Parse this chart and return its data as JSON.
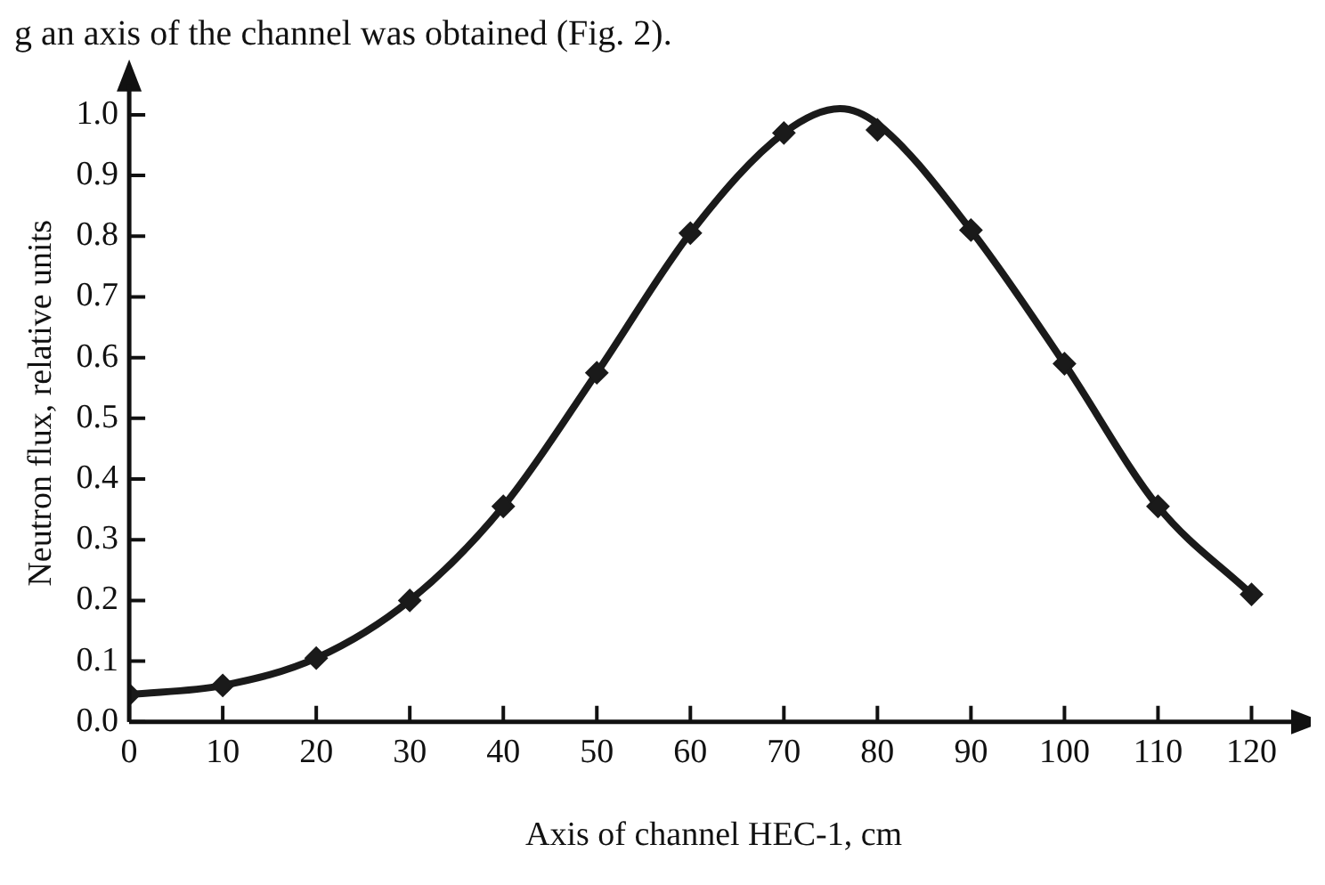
{
  "chart_data": {
    "type": "line",
    "xlabel": "Axis of channel HEC-1, cm",
    "ylabel": "Neutron flux, relative units",
    "annotations": [
      "g an axis of the channel was obtained (Fig. 2)."
    ],
    "series": [
      {
        "color": "#1a1a1a",
        "marker": "none",
        "x": [
          0,
          10,
          20,
          30,
          40,
          50,
          60,
          70,
          76,
          80,
          90,
          100,
          110,
          120
        ],
        "values": [
          0.045,
          0.06,
          0.105,
          0.2,
          0.355,
          0.575,
          0.805,
          0.97,
          1.01,
          0.985,
          0.81,
          0.59,
          0.355,
          0.21
        ]
      },
      {
        "type": "scatter",
        "color": "#1a1a1a",
        "marker": "diamond",
        "x": [
          0,
          10,
          20,
          30,
          40,
          50,
          60,
          70,
          80,
          90,
          100,
          110,
          120
        ],
        "values": [
          0.045,
          0.06,
          0.105,
          0.2,
          0.355,
          0.575,
          0.805,
          0.97,
          0.975,
          0.81,
          0.59,
          0.355,
          0.21
        ]
      }
    ],
    "xlim": [
      0,
      125
    ],
    "xticks": [
      0,
      10,
      20,
      30,
      40,
      50,
      60,
      70,
      80,
      90,
      100,
      110,
      120
    ],
    "ylim": [
      0,
      1.05
    ],
    "yticks": [
      {
        "value": 0,
        "label": "0.0"
      },
      0.1,
      0.2,
      0.3,
      0.4,
      0.5,
      0.6,
      0.7,
      0.8,
      0.9,
      {
        "value": 1,
        "label": "1.0"
      }
    ],
    "grid": false,
    "legend": false
  }
}
